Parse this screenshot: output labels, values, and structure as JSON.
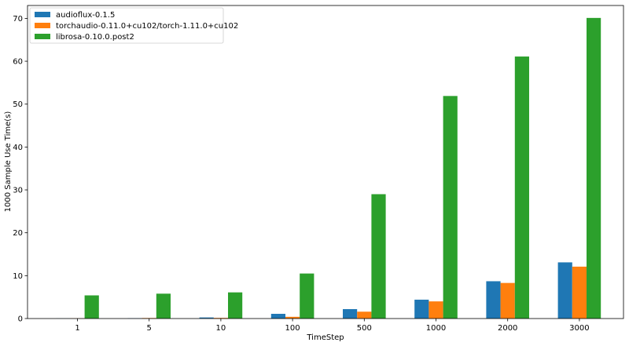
{
  "chart_data": {
    "type": "bar",
    "title": "",
    "xlabel": "TimeStep",
    "ylabel": "1000 Sample Use Time(s)",
    "categories": [
      "1",
      "5",
      "10",
      "100",
      "500",
      "1000",
      "2000",
      "3000"
    ],
    "ylim": [
      0,
      73
    ],
    "yticks": [
      0,
      10,
      20,
      30,
      40,
      50,
      60,
      70
    ],
    "grid": false,
    "legend_position": "top-left",
    "series": [
      {
        "name": "audioflux-0.1.5",
        "color": "#1f77b4",
        "values": [
          0.03,
          0.07,
          0.25,
          1.1,
          2.2,
          4.4,
          8.7,
          13.1
        ]
      },
      {
        "name": "torchaudio-0.11.0+cu102/torch-1.11.0+cu102",
        "color": "#ff7f0e",
        "values": [
          0.05,
          0.12,
          0.15,
          0.4,
          1.6,
          4.0,
          8.3,
          12.1
        ]
      },
      {
        "name": "librosa-0.10.0.post2",
        "color": "#2ca02c",
        "values": [
          5.4,
          5.8,
          6.1,
          10.5,
          29.0,
          51.9,
          61.1,
          70.1
        ]
      }
    ]
  }
}
